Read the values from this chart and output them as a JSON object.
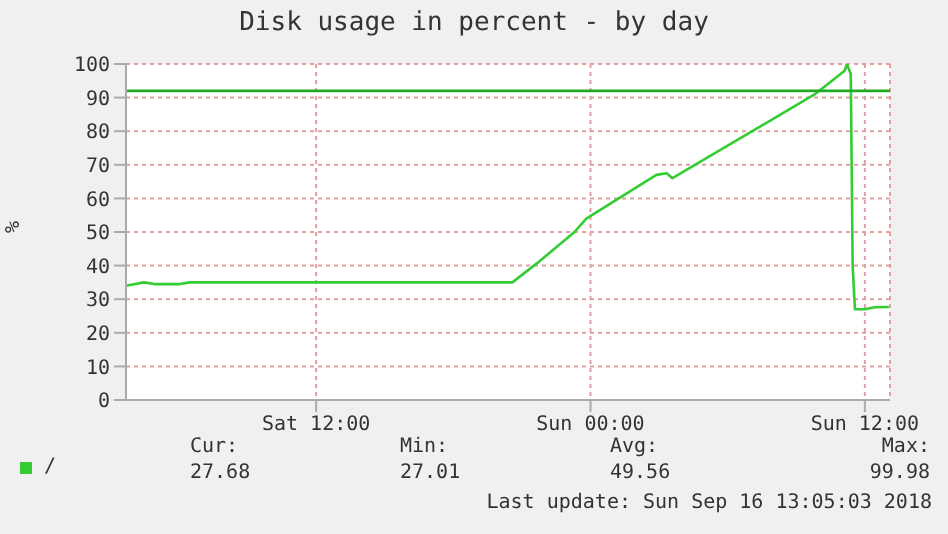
{
  "chart_data": {
    "type": "line",
    "title": "Disk usage in percent - by day",
    "ylabel": "%",
    "x": [
      "2018-09-15T03:41",
      "2018-09-15T04:28",
      "2018-09-15T04:55",
      "2018-09-15T06:02",
      "2018-09-15T06:29",
      "2018-09-15T20:35",
      "2018-09-15T21:43",
      "2018-09-15T23:18",
      "2018-09-15T23:49",
      "2018-09-16T02:53",
      "2018-09-16T03:20",
      "2018-09-16T03:35",
      "2018-09-16T09:49",
      "2018-09-16T11:07",
      "2018-09-16T11:13",
      "2018-09-16T11:23",
      "2018-09-16T11:28",
      "2018-09-16T11:34",
      "2018-09-16T12:00",
      "2018-09-16T12:26",
      "2018-09-16T13:03"
    ],
    "series": [
      {
        "name": "/",
        "color": "#33cc33",
        "values": [
          34,
          35,
          34.5,
          34.5,
          35,
          35,
          41,
          50,
          54,
          67,
          67.5,
          66,
          91,
          98,
          100,
          97,
          40,
          27,
          27,
          27.6,
          27.7
        ]
      }
    ],
    "xlim": [
      "2018-09-15T03:41",
      "2018-09-16T13:06"
    ],
    "xticks": [
      {
        "value": "2018-09-15T12:00",
        "label": "Sat 12:00"
      },
      {
        "value": "2018-09-16T00:00",
        "label": "Sun 00:00"
      },
      {
        "value": "2018-09-16T12:00",
        "label": "Sun 12:00"
      }
    ],
    "ylim": [
      0,
      100
    ],
    "yticks": [
      0,
      10,
      20,
      30,
      40,
      50,
      60,
      70,
      80,
      90,
      100
    ],
    "ref_lines": [
      {
        "axis": "y",
        "value": 92,
        "color": "#22aa22"
      }
    ],
    "grid": true,
    "legend": "bottom left",
    "marker": "none",
    "line_style": "solid",
    "annotations": [
      "Cur:",
      "27.68",
      "Min:",
      "27.01",
      "Avg:",
      "49.56",
      "Max:",
      "99.98",
      "Last update: Sun Sep 16 13:05:03 2018"
    ]
  }
}
